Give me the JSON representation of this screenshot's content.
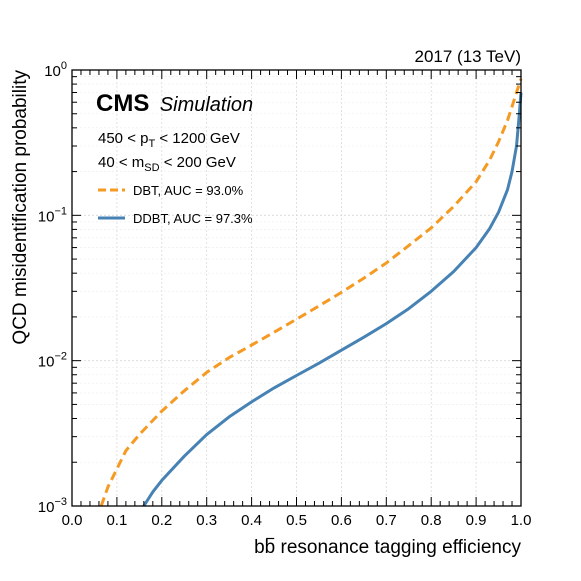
{
  "chart_data": {
    "type": "line",
    "title": "",
    "header_right": "2017 (13 TeV)",
    "experiment": "CMS",
    "experiment_tag": "Simulation",
    "cuts": [
      {
        "low": "450",
        "op1": "<",
        "var": "p",
        "sub": "T",
        "op2": "<",
        "high": "1200 GeV"
      },
      {
        "low": "40",
        "op1": "<",
        "var": "m",
        "sub": "SD",
        "op2": "<",
        "high": "200 GeV"
      }
    ],
    "xlabel": "b",
    "xlabel_bar": "b",
    "xlabel_rest": " resonance tagging efficiency",
    "ylabel": "QCD misidentification probability",
    "xlim": [
      0.0,
      1.0
    ],
    "ylim": [
      0.001,
      1.0
    ],
    "yscale": "log",
    "grid": true,
    "legend_position": "top-left",
    "x_ticks": [
      "0.0",
      "0.1",
      "0.2",
      "0.3",
      "0.4",
      "0.5",
      "0.6",
      "0.7",
      "0.8",
      "0.9",
      "1.0"
    ],
    "y_ticks": [
      {
        "base": "10",
        "exp": "−3",
        "value": 0.001
      },
      {
        "base": "10",
        "exp": "−2",
        "value": 0.01
      },
      {
        "base": "10",
        "exp": "−1",
        "value": 0.1
      },
      {
        "base": "10",
        "exp": "0",
        "value": 1.0
      }
    ],
    "series": [
      {
        "name": "DBT, AUC = 93.0%",
        "color": "#f59a23",
        "style": "dashed",
        "x": [
          0.065,
          0.08,
          0.1,
          0.12,
          0.15,
          0.2,
          0.25,
          0.3,
          0.35,
          0.4,
          0.45,
          0.5,
          0.55,
          0.6,
          0.65,
          0.7,
          0.75,
          0.8,
          0.85,
          0.9,
          0.93,
          0.95,
          0.97,
          0.98,
          0.99,
          1.0
        ],
        "y": [
          0.001,
          0.00135,
          0.0018,
          0.0024,
          0.0031,
          0.0045,
          0.0062,
          0.0083,
          0.0105,
          0.0128,
          0.0157,
          0.0193,
          0.0238,
          0.0295,
          0.037,
          0.047,
          0.062,
          0.082,
          0.115,
          0.17,
          0.24,
          0.32,
          0.45,
          0.56,
          0.7,
          0.87
        ]
      },
      {
        "name": "DDBT, AUC = 97.3%",
        "color": "#4682b4",
        "style": "solid",
        "x": [
          0.16,
          0.18,
          0.2,
          0.25,
          0.3,
          0.35,
          0.4,
          0.45,
          0.5,
          0.55,
          0.6,
          0.65,
          0.7,
          0.75,
          0.8,
          0.85,
          0.9,
          0.93,
          0.95,
          0.97,
          0.98,
          0.99,
          0.995,
          1.0
        ],
        "y": [
          0.001,
          0.00125,
          0.0015,
          0.0022,
          0.0031,
          0.0041,
          0.0052,
          0.0065,
          0.0079,
          0.0096,
          0.0118,
          0.0145,
          0.018,
          0.0228,
          0.03,
          0.041,
          0.06,
          0.081,
          0.105,
          0.15,
          0.2,
          0.3,
          0.45,
          0.7
        ]
      }
    ]
  }
}
